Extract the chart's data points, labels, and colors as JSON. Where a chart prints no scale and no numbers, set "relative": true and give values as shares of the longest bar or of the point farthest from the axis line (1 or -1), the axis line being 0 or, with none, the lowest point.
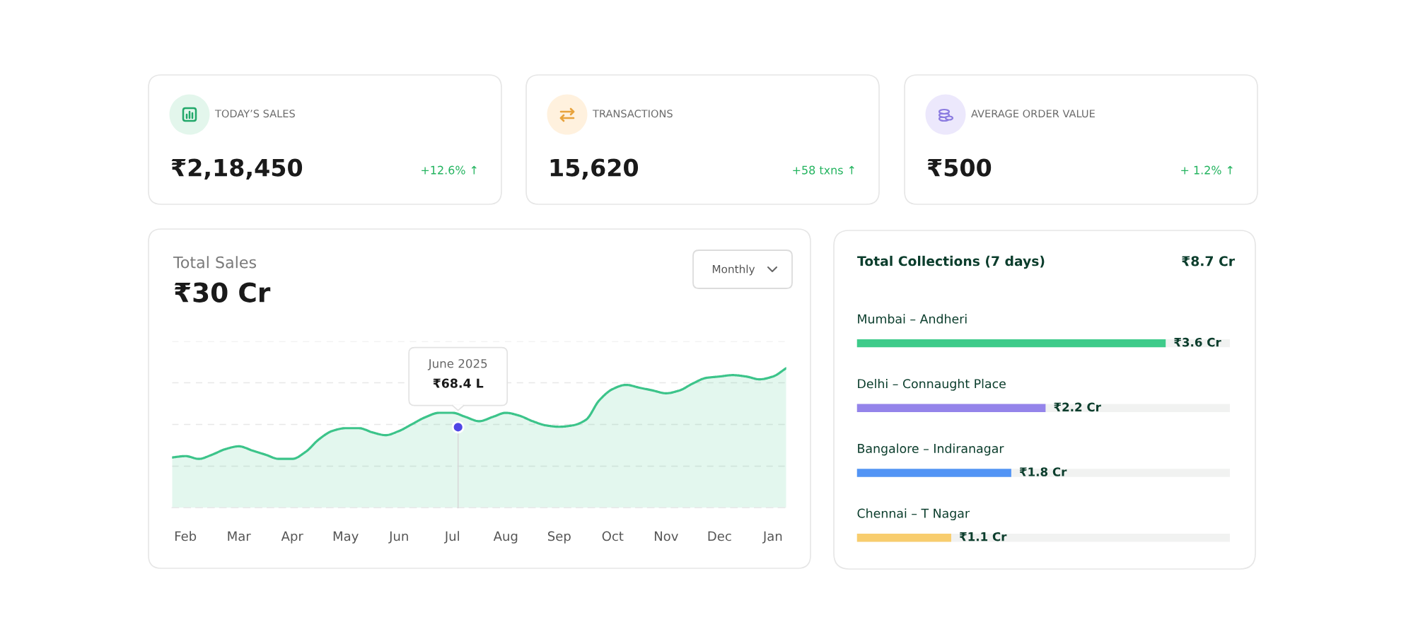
{
  "chart_data": [
    {
      "type": "other",
      "title": "TODAY’S SALES",
      "subtitle": "₹2,18,450",
      "annotations": [
        "+12.6% ↑"
      ]
    },
    {
      "type": "other",
      "title": "TRANSACTIONS",
      "subtitle": "15,620",
      "annotations": [
        "+58 txns ↑"
      ]
    },
    {
      "type": "other",
      "title": "AVERAGE ORDER VALUE",
      "subtitle": "₹500",
      "annotations": [
        "+ 1.2% ↑"
      ]
    },
    {
      "type": "area",
      "title": "Total Sales",
      "subtitle": "₹30 Cr",
      "relative": true,
      "grid": "y",
      "categories": [
        null,
        "Feb",
        null,
        null,
        null,
        "Mar",
        null,
        null,
        null,
        "Apr",
        null,
        null,
        null,
        "May",
        null,
        null,
        null,
        "Jun",
        null,
        null,
        null,
        "Jul",
        null,
        null,
        null,
        "Aug",
        null,
        null,
        null,
        "Sep",
        null,
        null,
        null,
        "Oct",
        null,
        null,
        null,
        "Nov",
        null,
        null,
        null,
        "Dec",
        null,
        null,
        null,
        "Jan",
        null
      ],
      "series": [
        {
          "color": "#3cc48a",
          "values": [
            0.36,
            0.37,
            0.35,
            0.38,
            0.42,
            0.44,
            0.41,
            0.38,
            0.35,
            0.35,
            0.4,
            0.49,
            0.55,
            0.57,
            0.57,
            0.54,
            0.52,
            0.55,
            0.6,
            0.65,
            0.68,
            0.68,
            0.65,
            0.62,
            0.65,
            0.68,
            0.66,
            0.62,
            0.59,
            0.58,
            0.59,
            0.63,
            0.77,
            0.85,
            0.88,
            0.86,
            0.84,
            0.82,
            0.84,
            0.89,
            0.93,
            0.94,
            0.95,
            0.94,
            0.92,
            0.94,
            1.0
          ]
        }
      ],
      "annotations": [
        "Monthly",
        "June 2025",
        "₹68.4 L"
      ]
    },
    {
      "type": "bar",
      "orientation": "horizontal",
      "title": "Total Collections (7 days)",
      "annotations": [
        "₹8.7 Cr"
      ],
      "categories": [
        "Mumbai – Andheri",
        "Delhi – Connaught Place",
        "Bangalore – Indiranagar",
        "Chennai – T Nagar"
      ],
      "values": [
        3.6,
        2.2,
        1.8,
        1.1
      ],
      "colors": [
        "#3ecb8a",
        "#9484ea",
        "#5294f5",
        "#f8cd6e"
      ],
      "value_labels": [
        "₹3.6 Cr",
        "₹2.2 Cr",
        "₹1.8 Cr",
        "₹1.1 Cr"
      ],
      "xlim": [
        0,
        4.35
      ]
    }
  ]
}
